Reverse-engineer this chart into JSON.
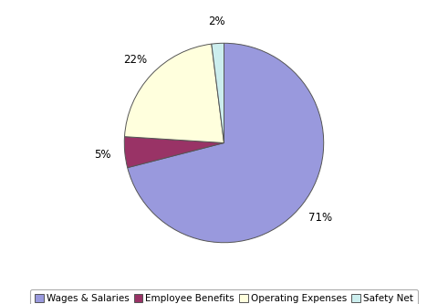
{
  "labels": [
    "Wages & Salaries",
    "Employee Benefits",
    "Operating Expenses",
    "Safety Net"
  ],
  "values": [
    71,
    5,
    22,
    2
  ],
  "colors": [
    "#9999dd",
    "#993366",
    "#ffffdd",
    "#cceeee"
  ],
  "edge_color": "#555555",
  "pct_labels": [
    "71%",
    "5%",
    "22%",
    "2%"
  ],
  "background_color": "#ffffff",
  "legend_fontsize": 7.5,
  "legend_box_color": "#ffffff",
  "legend_edge_color": "#999999",
  "startangle": 90
}
